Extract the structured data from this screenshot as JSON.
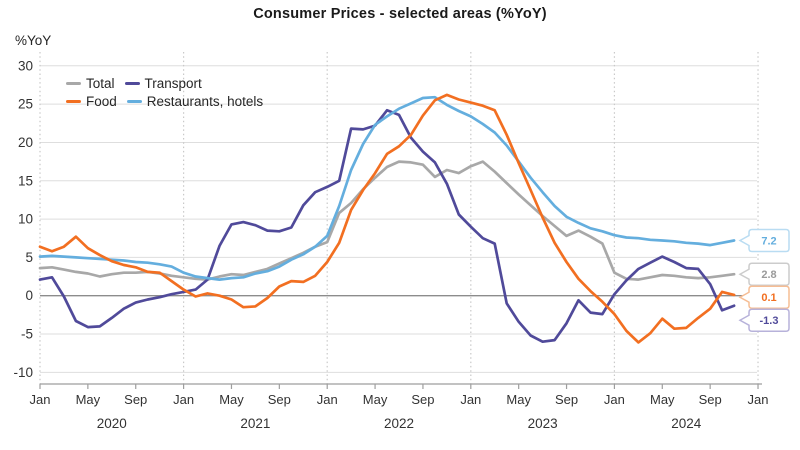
{
  "title": "Consumer Prices - selected areas (%YoY)",
  "y_axis_unit": "%YoY",
  "legend": [
    {
      "label": "Total",
      "color": "#a8a8a8"
    },
    {
      "label": "Transport",
      "color": "#504a9a"
    },
    {
      "label": "Food",
      "color": "#f26f21"
    },
    {
      "label": "Restaurants, hotels",
      "color": "#64aede"
    }
  ],
  "axis_style": {
    "grid_color": "#dedede",
    "zero_line_color": "#8c8c8c",
    "axis_line_color": "#9e9e9e",
    "dotted_line_color": "#c9c9c9",
    "tick_color": "#9e9e9e"
  },
  "chart_data": {
    "type": "line",
    "title": "Consumer Prices - selected areas (%YoY)",
    "ylabel": "%YoY",
    "ylim": [
      -10,
      30
    ],
    "y_ticks": [
      30,
      25,
      20,
      15,
      10,
      5,
      0,
      -5,
      -10
    ],
    "x_start": "2020-01",
    "x_end": "2024-11",
    "x_tick_labels": [
      "Jan",
      "May",
      "Sep",
      "Jan",
      "May",
      "Sep",
      "Jan",
      "May",
      "Sep",
      "Jan",
      "May",
      "Sep",
      "Jan",
      "May",
      "Sep",
      "Jan"
    ],
    "year_labels": [
      "2020",
      "2021",
      "2022",
      "2023",
      "2024"
    ],
    "grid": true,
    "legend_position": "top-left-inside",
    "series": [
      {
        "name": "Total",
        "color": "#a8a8a8",
        "values": [
          3.6,
          3.7,
          3.4,
          3.1,
          2.9,
          2.5,
          2.8,
          3.0,
          3.0,
          3.1,
          2.9,
          2.6,
          2.4,
          2.2,
          2.1,
          2.5,
          2.8,
          2.7,
          3.1,
          3.5,
          4.2,
          4.9,
          5.6,
          6.4,
          7.0,
          10.8,
          12.1,
          13.9,
          15.4,
          16.8,
          17.5,
          17.4,
          17.1,
          15.5,
          16.4,
          16.0,
          16.9,
          17.5,
          16.2,
          14.7,
          13.2,
          11.8,
          10.4,
          9.1,
          7.8,
          8.5,
          7.7,
          6.8,
          3.0,
          2.2,
          2.1,
          2.4,
          2.7,
          2.6,
          2.4,
          2.3,
          2.4,
          2.6,
          2.8
        ]
      },
      {
        "name": "Transport",
        "color": "#504a9a",
        "values": [
          2.1,
          2.4,
          -0.1,
          -3.3,
          -4.1,
          -4.0,
          -2.9,
          -1.7,
          -0.9,
          -0.5,
          -0.2,
          0.2,
          0.5,
          0.8,
          2.1,
          6.5,
          9.3,
          9.6,
          9.2,
          8.5,
          8.4,
          8.9,
          11.8,
          13.5,
          14.2,
          15.0,
          21.8,
          21.7,
          22.2,
          24.2,
          23.6,
          20.6,
          18.8,
          17.4,
          14.6,
          10.6,
          9.0,
          7.5,
          6.8,
          -1.0,
          -3.4,
          -5.2,
          -6.0,
          -5.8,
          -3.6,
          -0.6,
          -2.2,
          -2.4,
          0.2,
          2.0,
          3.5,
          4.3,
          5.1,
          4.4,
          3.6,
          3.5,
          1.5,
          -1.9,
          -1.3
        ]
      },
      {
        "name": "Food",
        "color": "#f26f21",
        "values": [
          6.4,
          5.8,
          6.4,
          7.7,
          6.2,
          5.3,
          4.5,
          4.0,
          3.7,
          3.1,
          3.0,
          1.9,
          0.8,
          -0.1,
          0.3,
          0.0,
          -0.5,
          -1.5,
          -1.4,
          -0.3,
          1.2,
          1.9,
          1.8,
          2.6,
          4.4,
          6.9,
          11.2,
          13.8,
          16.0,
          18.5,
          19.5,
          21.0,
          23.5,
          25.5,
          26.2,
          25.6,
          25.2,
          24.8,
          24.2,
          21.0,
          17.3,
          13.8,
          10.2,
          6.9,
          4.4,
          2.2,
          0.6,
          -0.8,
          -2.4,
          -4.6,
          -6.1,
          -4.9,
          -3.0,
          -4.3,
          -4.2,
          -2.9,
          -1.7,
          0.5,
          0.1
        ]
      },
      {
        "name": "Restaurants, hotels",
        "color": "#64aede",
        "values": [
          5.1,
          5.2,
          5.1,
          5.0,
          4.9,
          4.8,
          4.7,
          4.6,
          4.4,
          4.3,
          4.1,
          3.8,
          3.0,
          2.5,
          2.3,
          2.1,
          2.3,
          2.4,
          2.9,
          3.2,
          3.8,
          4.7,
          5.4,
          6.4,
          7.8,
          11.7,
          16.4,
          19.8,
          22.3,
          23.4,
          24.4,
          25.1,
          25.8,
          25.9,
          24.9,
          24.1,
          23.4,
          22.4,
          21.3,
          19.6,
          17.5,
          15.4,
          13.5,
          11.7,
          10.3,
          9.5,
          8.8,
          8.4,
          7.9,
          7.6,
          7.5,
          7.3,
          7.2,
          7.1,
          6.9,
          6.8,
          6.6,
          6.9,
          7.2
        ]
      }
    ],
    "end_labels": [
      {
        "text": "7.2",
        "value": 7.2,
        "series": "Restaurants, hotels",
        "color": "#64aede",
        "border": "#b9dcf2"
      },
      {
        "text": "2.8",
        "value": 2.8,
        "series": "Total",
        "color": "#9a9a9a",
        "border": "#cccccc"
      },
      {
        "text": "0.1",
        "value": 0.1,
        "series": "Food",
        "color": "#f26f21",
        "border": "#f6bd94"
      },
      {
        "text": "-1.3",
        "value": -1.3,
        "series": "Transport",
        "color": "#504a9a",
        "border": "#b7b2da"
      }
    ]
  }
}
